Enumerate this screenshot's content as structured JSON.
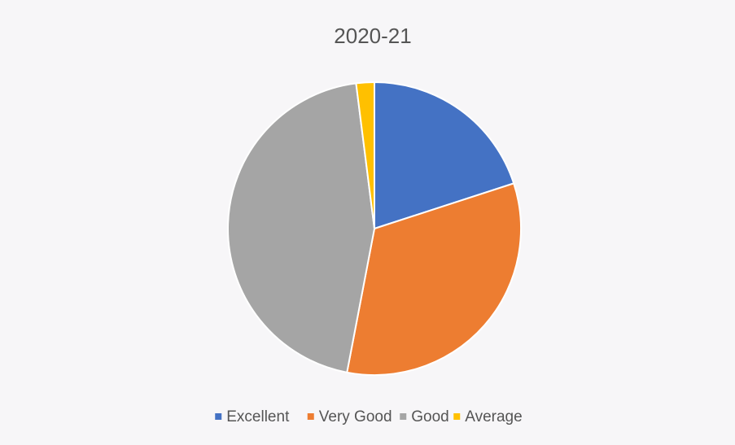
{
  "chart_data": {
    "type": "pie",
    "title": "2020-21",
    "categories": [
      "Excellent",
      "Very Good",
      "Good",
      "Average"
    ],
    "values": [
      20,
      33,
      45,
      2
    ],
    "colors": [
      "#4472c4",
      "#ed7d31",
      "#a5a5a5",
      "#ffc000"
    ],
    "legend": "bottom"
  }
}
